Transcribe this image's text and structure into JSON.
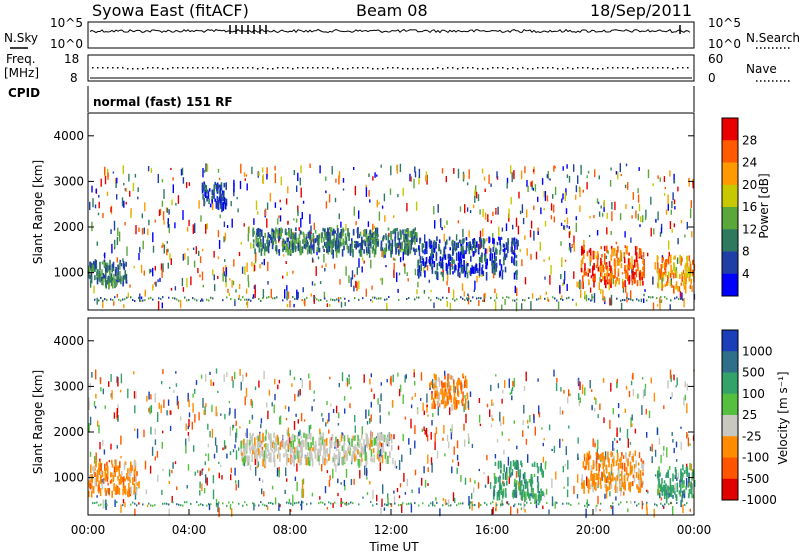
{
  "header": {
    "title": "Syowa East (fitACF)",
    "beam": "Beam 08",
    "date": "18/Sep/2011"
  },
  "noise_panel": {
    "left_label": "N.Sky",
    "right_label": "N.Search",
    "left_ticks": [
      "10^5",
      "10^0"
    ],
    "right_ticks": [
      "10^5",
      "10^0"
    ]
  },
  "freq_panel": {
    "left_label_top": "Freq.",
    "left_label_units": "[MHz]",
    "left_ticks": [
      "18",
      "8"
    ],
    "right_label": "Nave",
    "right_ticks": [
      "60",
      "0"
    ]
  },
  "cpid_panel": {
    "label": "CPID",
    "mode": "normal (fast) 151 RF"
  },
  "colors": {
    "power_scale": [
      "#0000ff",
      "#1f3fa6",
      "#2f7a5e",
      "#5aa83a",
      "#c8c800",
      "#ff9900",
      "#ff5a00",
      "#e80000"
    ],
    "velocity_scale": [
      "#1a3fb8",
      "#2f6f8a",
      "#34a36a",
      "#55c040",
      "#c8c8c0",
      "#ff8c00",
      "#ff5500",
      "#e00000"
    ]
  },
  "chart_data": [
    {
      "type": "heatmap",
      "name": "power",
      "ylabel": "Slant Range [km]",
      "ylim": [
        180,
        4500
      ],
      "yticks": [
        1000,
        2000,
        3000,
        4000
      ],
      "xlim_hours": [
        0,
        24
      ],
      "colorbar": {
        "label": "Power [dB]",
        "ticks": [
          "4",
          "8",
          "12",
          "16",
          "20",
          "24",
          "28"
        ]
      },
      "features": [
        {
          "start": "00:00",
          "end": "01:30",
          "range_km": [
            800,
            1300
          ],
          "level_db": 10
        },
        {
          "start": "04:30",
          "end": "05:30",
          "range_km": [
            2500,
            3000
          ],
          "level_db": 9
        },
        {
          "start": "06:30",
          "end": "13:00",
          "range_km": [
            1500,
            2000
          ],
          "level_db": 10
        },
        {
          "start": "13:00",
          "end": "17:00",
          "range_km": [
            1000,
            1800
          ],
          "level_db": 9
        },
        {
          "start": "19:30",
          "end": "22:00",
          "range_km": [
            800,
            1600
          ],
          "level_db": 26
        },
        {
          "start": "22:30",
          "end": "24:00",
          "range_km": [
            700,
            1400
          ],
          "level_db": 24
        }
      ]
    },
    {
      "type": "heatmap",
      "name": "velocity",
      "ylabel": "Slant Range [km]",
      "xlabel": "Time UT",
      "ylim": [
        180,
        4500
      ],
      "yticks": [
        1000,
        2000,
        3000,
        4000
      ],
      "xlim_hours": [
        0,
        24
      ],
      "xticks": [
        "00:00",
        "04:00",
        "08:00",
        "12:00",
        "16:00",
        "20:00",
        "00:00"
      ],
      "colorbar": {
        "label": "Velocity [m s⁻¹]",
        "ticks": [
          "1000",
          "500",
          "100",
          "25",
          "-25",
          "-100",
          "-500",
          "-1000"
        ]
      },
      "features": [
        {
          "start": "00:00",
          "end": "02:00",
          "range_km": [
            700,
            1400
          ],
          "velocity": -300
        },
        {
          "start": "06:00",
          "end": "12:00",
          "range_km": [
            1400,
            2000
          ],
          "velocity": 0
        },
        {
          "start": "13:30",
          "end": "15:00",
          "range_km": [
            2600,
            3300
          ],
          "velocity": -200
        },
        {
          "start": "16:00",
          "end": "18:00",
          "range_km": [
            600,
            1400
          ],
          "velocity": 200
        },
        {
          "start": "19:30",
          "end": "22:00",
          "range_km": [
            800,
            1600
          ],
          "velocity": -250
        },
        {
          "start": "22:30",
          "end": "24:00",
          "range_km": [
            600,
            1300
          ],
          "velocity": 150
        }
      ]
    }
  ]
}
